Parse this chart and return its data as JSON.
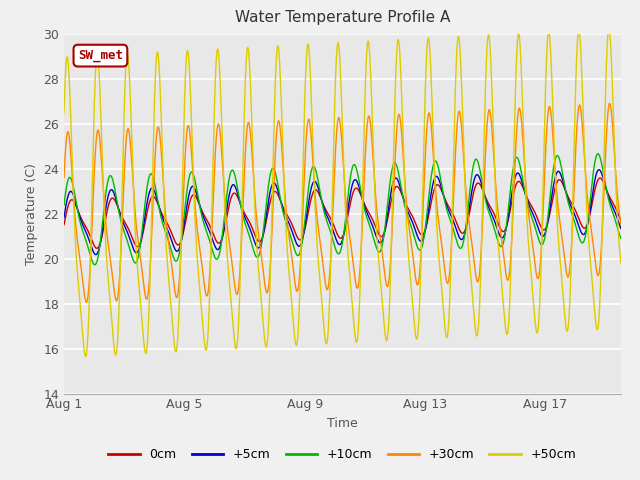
{
  "title": "Water Temperature Profile A",
  "xlabel": "Time",
  "ylabel": "Temperature (C)",
  "ylim": [
    14,
    30
  ],
  "xlim_days": [
    0,
    18.5
  ],
  "x_ticks_days": [
    0,
    4,
    8,
    12,
    16
  ],
  "x_tick_labels": [
    "Aug 1",
    "Aug 5",
    "Aug 9",
    "Aug 13",
    "Aug 17"
  ],
  "y_ticks": [
    14,
    16,
    18,
    20,
    22,
    24,
    26,
    28,
    30
  ],
  "series_order": [
    "0cm",
    "+5cm",
    "+10cm",
    "+30cm",
    "+50cm"
  ],
  "series": {
    "0cm": {
      "color": "#cc0000",
      "base_temp": 21.5,
      "amp": 1.0,
      "phase": 0.0,
      "trend": 0.055,
      "period": 1.35
    },
    "+5cm": {
      "color": "#0000cc",
      "base_temp": 21.5,
      "amp": 1.3,
      "phase": 0.2,
      "trend": 0.055,
      "period": 1.35
    },
    "+10cm": {
      "color": "#00bb00",
      "base_temp": 21.5,
      "amp": 1.8,
      "phase": 0.4,
      "trend": 0.06,
      "period": 1.35
    },
    "+30cm": {
      "color": "#ff8800",
      "base_temp": 21.5,
      "amp": 3.5,
      "phase": 0.5,
      "trend": 0.07,
      "period": 1.0
    },
    "+50cm": {
      "color": "#ddcc00",
      "base_temp": 21.5,
      "amp": 6.2,
      "phase": 0.7,
      "trend": 0.07,
      "period": 1.0
    }
  },
  "annotation_text": "SW_met",
  "annotation_color": "#aa0000",
  "annotation_bg": "#ffffff",
  "annotation_border": "#aa0000",
  "fig_bg_color": "#f0f0f0",
  "plot_bg_color": "#e8e8e8",
  "title_fontsize": 11,
  "axis_label_fontsize": 9,
  "tick_fontsize": 9,
  "legend_fontsize": 9
}
